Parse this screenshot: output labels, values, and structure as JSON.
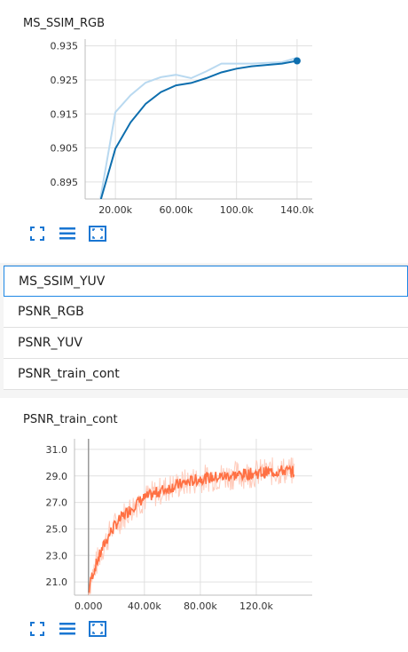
{
  "colors": {
    "accent": "#1976d2",
    "ssim_line": "#0d6eae",
    "ssim_raw": "#b9d9f0",
    "psnr_line": "#ff7043",
    "psnr_raw": "#ffccbc"
  },
  "icons": {
    "fit": "fullscreen-icon",
    "list": "list-icon",
    "zoom": "fit-domain-icon"
  },
  "cards": [
    {
      "title": "MS_SSIM_RGB",
      "chart_data": {
        "type": "line",
        "title": "MS_SSIM_RGB",
        "xlim": [
          0,
          150000
        ],
        "ylim": [
          0.89,
          0.937
        ],
        "x_ticks": [
          {
            "value": 20000,
            "label": "20.00k"
          },
          {
            "value": 60000,
            "label": "60.00k"
          },
          {
            "value": 100000,
            "label": "100.0k"
          },
          {
            "value": 140000,
            "label": "140.0k"
          }
        ],
        "y_ticks": [
          {
            "value": 0.935,
            "label": "0.935"
          },
          {
            "value": 0.925,
            "label": "0.925"
          },
          {
            "value": 0.915,
            "label": "0.915"
          },
          {
            "value": 0.905,
            "label": "0.905"
          },
          {
            "value": 0.895,
            "label": "0.895"
          }
        ],
        "series": [
          {
            "role": "raw",
            "x": [
              10000,
              20000,
              30000,
              40000,
              50000,
              60000,
              70000,
              80000,
              90000,
              100000,
              110000,
              120000,
              130000,
              140000
            ],
            "y": [
              0.89,
              0.9155,
              0.9205,
              0.9242,
              0.9258,
              0.9265,
              0.9255,
              0.9275,
              0.9298,
              0.9298,
              0.9298,
              0.93,
              0.9302,
              0.9315
            ]
          },
          {
            "role": "smoothed",
            "x": [
              10000,
              20000,
              30000,
              40000,
              50000,
              60000,
              70000,
              80000,
              90000,
              100000,
              110000,
              120000,
              130000,
              140000
            ],
            "y": [
              0.8893,
              0.9048,
              0.9125,
              0.918,
              0.9214,
              0.9234,
              0.9241,
              0.9255,
              0.9272,
              0.9283,
              0.929,
              0.9294,
              0.9298,
              0.9306
            ]
          }
        ]
      }
    },
    {
      "title": "PSNR_train_cont",
      "chart_data": {
        "type": "line",
        "title": "PSNR_train_cont",
        "xlim": [
          -10000,
          160000
        ],
        "ylim": [
          20.0,
          31.8
        ],
        "x_ticks": [
          {
            "value": 0,
            "label": "0.000"
          },
          {
            "value": 40000,
            "label": "40.00k"
          },
          {
            "value": 80000,
            "label": "80.00k"
          },
          {
            "value": 120000,
            "label": "120.0k"
          }
        ],
        "y_ticks": [
          {
            "value": 31.0,
            "label": "31.0"
          },
          {
            "value": 29.0,
            "label": "29.0"
          },
          {
            "value": 27.0,
            "label": "27.0"
          },
          {
            "value": 25.0,
            "label": "25.0"
          },
          {
            "value": 23.0,
            "label": "23.0"
          },
          {
            "value": 21.0,
            "label": "21.0"
          }
        ],
        "series": [
          {
            "role": "smoothed",
            "x": [
              0,
              2000,
              5000,
              8000,
              12000,
              16000,
              20000,
              25000,
              30000,
              35000,
              40000,
              50000,
              60000,
              70000,
              80000,
              90000,
              100000,
              110000,
              120000,
              130000,
              140000,
              147000
            ],
            "y": [
              20.2,
              21.3,
              22.2,
              23.0,
              24.0,
              24.8,
              25.4,
              26.0,
              26.5,
              27.0,
              27.3,
              27.8,
              28.2,
              28.5,
              28.8,
              28.9,
              29.0,
              29.1,
              29.2,
              29.3,
              29.4,
              29.3
            ]
          }
        ]
      }
    }
  ],
  "list": {
    "items": [
      {
        "label": "MS_SSIM_YUV"
      },
      {
        "label": "PSNR_RGB"
      },
      {
        "label": "PSNR_YUV"
      },
      {
        "label": "PSNR_train_cont"
      }
    ]
  }
}
